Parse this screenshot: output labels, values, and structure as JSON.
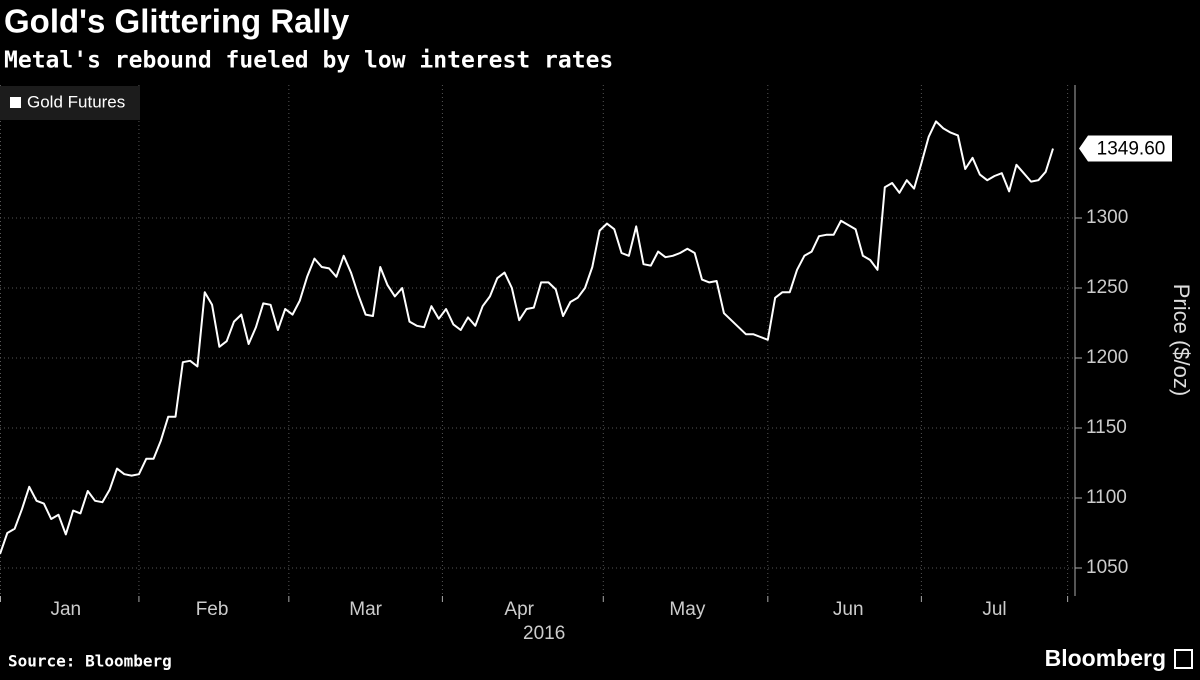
{
  "chart_data": {
    "type": "line",
    "title": "Gold's Glittering Rally",
    "subtitle": "Metal's rebound fueled by low interest rates",
    "source": "Source: Bloomberg",
    "brand": "Bloomberg",
    "y_label": "Price ($/oz)",
    "x_sublabel": "2016",
    "callout": "1349.60",
    "categories": [
      null,
      null,
      null,
      null,
      null,
      null,
      null,
      null,
      null,
      "Jan",
      null,
      null,
      null,
      null,
      null,
      null,
      null,
      null,
      null,
      null,
      null,
      null,
      null,
      null,
      null,
      null,
      null,
      null,
      null,
      "Feb",
      null,
      null,
      null,
      null,
      null,
      null,
      null,
      null,
      null,
      null,
      null,
      null,
      null,
      null,
      null,
      null,
      null,
      null,
      null,
      null,
      "Mar",
      null,
      null,
      null,
      null,
      null,
      null,
      null,
      null,
      null,
      null,
      null,
      null,
      null,
      null,
      null,
      null,
      null,
      null,
      null,
      null,
      "Apr",
      null,
      null,
      null,
      null,
      null,
      null,
      null,
      null,
      null,
      null,
      null,
      null,
      null,
      null,
      null,
      null,
      null,
      null,
      null,
      null,
      null,
      null,
      "May",
      null,
      null,
      null,
      null,
      null,
      null,
      null,
      null,
      null,
      null,
      null,
      null,
      null,
      null,
      null,
      null,
      null,
      null,
      null,
      null,
      null,
      "Jun",
      null,
      null,
      null,
      null,
      null,
      null,
      null,
      null,
      null,
      null,
      null,
      null,
      null,
      null,
      null,
      null,
      null,
      null,
      null,
      "Jul",
      null,
      null,
      null,
      null,
      null,
      null,
      null,
      null
    ],
    "series": [
      {
        "name": "Gold Futures",
        "color": "#ffffff",
        "values": [
          1060,
          1075,
          1078,
          1092,
          1108,
          1098,
          1096,
          1085,
          1088,
          1074,
          1091,
          1089,
          1105,
          1098,
          1097,
          1106,
          1121,
          1117,
          1116,
          1117,
          1128,
          1128,
          1141,
          1158,
          1158,
          1197,
          1198,
          1194,
          1247,
          1238,
          1208,
          1212,
          1226,
          1231,
          1210,
          1222,
          1239,
          1238,
          1220,
          1235,
          1231,
          1241,
          1258,
          1271,
          1265,
          1264,
          1258,
          1273,
          1261,
          1245,
          1231,
          1230,
          1265,
          1252,
          1244,
          1250,
          1226,
          1223,
          1222,
          1237,
          1228,
          1235,
          1224,
          1220,
          1229,
          1223,
          1237,
          1244,
          1257,
          1261,
          1250,
          1227,
          1235,
          1236,
          1254,
          1254,
          1249,
          1230,
          1240,
          1243,
          1250,
          1265,
          1291,
          1296,
          1292,
          1275,
          1273,
          1294,
          1267,
          1266,
          1276,
          1272,
          1273,
          1275,
          1278,
          1275,
          1256,
          1254,
          1255,
          1232,
          1227,
          1222,
          1217,
          1217,
          1215,
          1213,
          1243,
          1247,
          1247,
          1263,
          1273,
          1276,
          1287,
          1288,
          1288,
          1298,
          1295,
          1292,
          1273,
          1270,
          1263,
          1322,
          1325,
          1318,
          1327,
          1321,
          1339,
          1358,
          1369,
          1364,
          1361,
          1359,
          1335,
          1343,
          1331,
          1327,
          1330,
          1332,
          1319,
          1338,
          1332,
          1326,
          1327,
          1333,
          1349.6
        ]
      }
    ],
    "ylim": [
      1030,
      1395
    ],
    "yticks": [
      1050,
      1100,
      1150,
      1200,
      1250,
      1300
    ],
    "grid": true,
    "legend": "top-left"
  }
}
